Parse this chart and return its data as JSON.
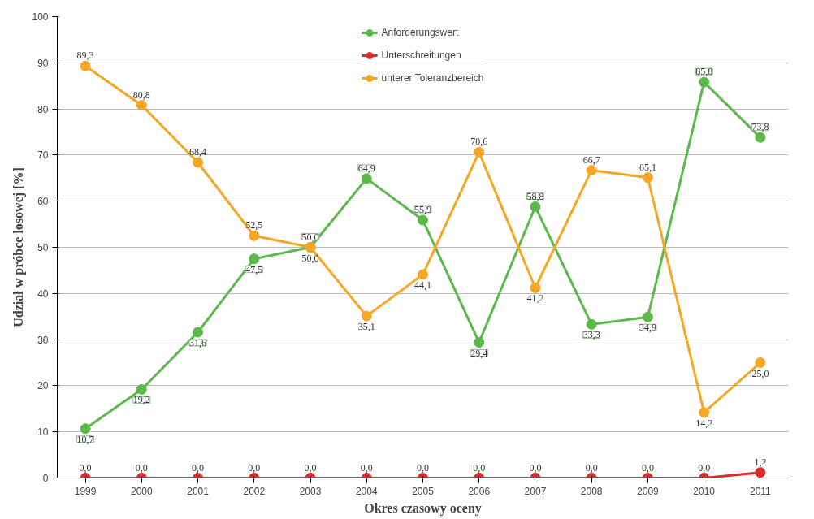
{
  "chart_data": {
    "type": "line",
    "xlabel": "Okres czasowy oceny",
    "ylabel": "Udział w próbce losowej [%]",
    "categories": [
      "1999",
      "2000",
      "2001",
      "2002",
      "2003",
      "2004",
      "2005",
      "2006",
      "2007",
      "2008",
      "2009",
      "2010",
      "2011"
    ],
    "series": [
      {
        "name": "Anforderungswert",
        "color": "#5bb84a",
        "values": [
          10.7,
          19.2,
          31.6,
          47.5,
          50.0,
          64.9,
          55.9,
          29.4,
          58.8,
          33.3,
          34.9,
          85.8,
          73.8
        ],
        "value_labels": [
          "10,7",
          "19,2",
          "31,6",
          "47,5",
          "50,0",
          "64,9",
          "55,9",
          "29,4",
          "58,8",
          "33,3",
          "34,9",
          "85,8",
          "73,8"
        ]
      },
      {
        "name": "Unterschreitungen",
        "color": "#e02a2a",
        "values": [
          0,
          0,
          0,
          0,
          0,
          0,
          0,
          0,
          0,
          0,
          0,
          0,
          1.2
        ],
        "value_labels": [
          "0,0",
          "0,0",
          "0,0",
          "0,0",
          "0,0",
          "0,0",
          "0,0",
          "0,0",
          "0,0",
          "0,0",
          "0,0",
          "0,0",
          "1,2"
        ]
      },
      {
        "name": "unterer Toleranzbereich",
        "color": "#f5a623",
        "values": [
          89.3,
          80.8,
          68.4,
          52.5,
          50.0,
          35.1,
          44.1,
          70.6,
          41.2,
          66.7,
          65.1,
          14.2,
          25.0
        ],
        "value_labels": [
          "89,3",
          "80,8",
          "68,4",
          "52,5",
          "50,0",
          "35,1",
          "44,1",
          "70,6",
          "41,2",
          "66,7",
          "65,1",
          "14,2",
          "25,0"
        ]
      }
    ],
    "ylim": [
      0,
      100
    ],
    "yticks": [
      0,
      10,
      20,
      30,
      40,
      50,
      60,
      70,
      80,
      90,
      100
    ],
    "grid": "y",
    "legend": "top",
    "marker": "circle",
    "line_style": "solid"
  }
}
